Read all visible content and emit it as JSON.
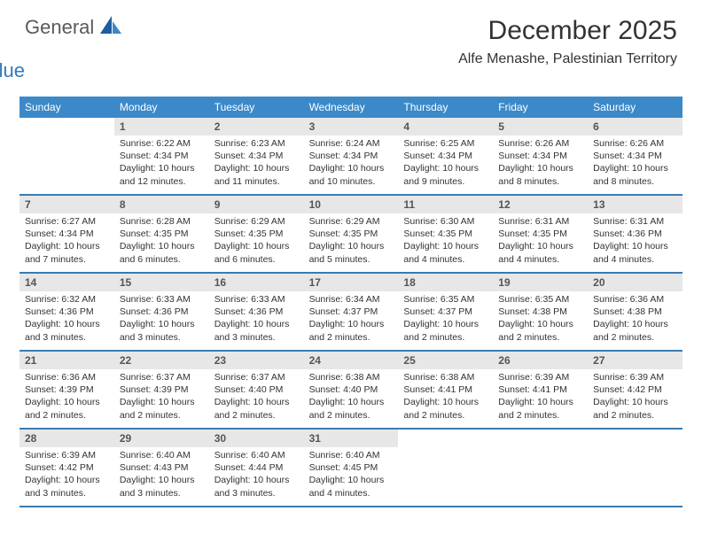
{
  "brand": {
    "general": "General",
    "blue": "Blue"
  },
  "title": "December 2025",
  "location": "Alfe Menashe, Palestinian Territory",
  "colors": {
    "header_bg": "#3b89c9",
    "header_text": "#ffffff",
    "daynum_bg": "#e7e7e7",
    "daynum_text": "#555555",
    "body_text": "#333333",
    "rule": "#3b7bb0",
    "brand_blue": "#2f7ac0",
    "brand_gray": "#5a5a5a"
  },
  "weekdays": [
    "Sunday",
    "Monday",
    "Tuesday",
    "Wednesday",
    "Thursday",
    "Friday",
    "Saturday"
  ],
  "weeks": [
    [
      null,
      {
        "n": "1",
        "sunrise": "Sunrise: 6:22 AM",
        "sunset": "Sunset: 4:34 PM",
        "day": "Daylight: 10 hours and 12 minutes."
      },
      {
        "n": "2",
        "sunrise": "Sunrise: 6:23 AM",
        "sunset": "Sunset: 4:34 PM",
        "day": "Daylight: 10 hours and 11 minutes."
      },
      {
        "n": "3",
        "sunrise": "Sunrise: 6:24 AM",
        "sunset": "Sunset: 4:34 PM",
        "day": "Daylight: 10 hours and 10 minutes."
      },
      {
        "n": "4",
        "sunrise": "Sunrise: 6:25 AM",
        "sunset": "Sunset: 4:34 PM",
        "day": "Daylight: 10 hours and 9 minutes."
      },
      {
        "n": "5",
        "sunrise": "Sunrise: 6:26 AM",
        "sunset": "Sunset: 4:34 PM",
        "day": "Daylight: 10 hours and 8 minutes."
      },
      {
        "n": "6",
        "sunrise": "Sunrise: 6:26 AM",
        "sunset": "Sunset: 4:34 PM",
        "day": "Daylight: 10 hours and 8 minutes."
      }
    ],
    [
      {
        "n": "7",
        "sunrise": "Sunrise: 6:27 AM",
        "sunset": "Sunset: 4:34 PM",
        "day": "Daylight: 10 hours and 7 minutes."
      },
      {
        "n": "8",
        "sunrise": "Sunrise: 6:28 AM",
        "sunset": "Sunset: 4:35 PM",
        "day": "Daylight: 10 hours and 6 minutes."
      },
      {
        "n": "9",
        "sunrise": "Sunrise: 6:29 AM",
        "sunset": "Sunset: 4:35 PM",
        "day": "Daylight: 10 hours and 6 minutes."
      },
      {
        "n": "10",
        "sunrise": "Sunrise: 6:29 AM",
        "sunset": "Sunset: 4:35 PM",
        "day": "Daylight: 10 hours and 5 minutes."
      },
      {
        "n": "11",
        "sunrise": "Sunrise: 6:30 AM",
        "sunset": "Sunset: 4:35 PM",
        "day": "Daylight: 10 hours and 4 minutes."
      },
      {
        "n": "12",
        "sunrise": "Sunrise: 6:31 AM",
        "sunset": "Sunset: 4:35 PM",
        "day": "Daylight: 10 hours and 4 minutes."
      },
      {
        "n": "13",
        "sunrise": "Sunrise: 6:31 AM",
        "sunset": "Sunset: 4:36 PM",
        "day": "Daylight: 10 hours and 4 minutes."
      }
    ],
    [
      {
        "n": "14",
        "sunrise": "Sunrise: 6:32 AM",
        "sunset": "Sunset: 4:36 PM",
        "day": "Daylight: 10 hours and 3 minutes."
      },
      {
        "n": "15",
        "sunrise": "Sunrise: 6:33 AM",
        "sunset": "Sunset: 4:36 PM",
        "day": "Daylight: 10 hours and 3 minutes."
      },
      {
        "n": "16",
        "sunrise": "Sunrise: 6:33 AM",
        "sunset": "Sunset: 4:36 PM",
        "day": "Daylight: 10 hours and 3 minutes."
      },
      {
        "n": "17",
        "sunrise": "Sunrise: 6:34 AM",
        "sunset": "Sunset: 4:37 PM",
        "day": "Daylight: 10 hours and 2 minutes."
      },
      {
        "n": "18",
        "sunrise": "Sunrise: 6:35 AM",
        "sunset": "Sunset: 4:37 PM",
        "day": "Daylight: 10 hours and 2 minutes."
      },
      {
        "n": "19",
        "sunrise": "Sunrise: 6:35 AM",
        "sunset": "Sunset: 4:38 PM",
        "day": "Daylight: 10 hours and 2 minutes."
      },
      {
        "n": "20",
        "sunrise": "Sunrise: 6:36 AM",
        "sunset": "Sunset: 4:38 PM",
        "day": "Daylight: 10 hours and 2 minutes."
      }
    ],
    [
      {
        "n": "21",
        "sunrise": "Sunrise: 6:36 AM",
        "sunset": "Sunset: 4:39 PM",
        "day": "Daylight: 10 hours and 2 minutes."
      },
      {
        "n": "22",
        "sunrise": "Sunrise: 6:37 AM",
        "sunset": "Sunset: 4:39 PM",
        "day": "Daylight: 10 hours and 2 minutes."
      },
      {
        "n": "23",
        "sunrise": "Sunrise: 6:37 AM",
        "sunset": "Sunset: 4:40 PM",
        "day": "Daylight: 10 hours and 2 minutes."
      },
      {
        "n": "24",
        "sunrise": "Sunrise: 6:38 AM",
        "sunset": "Sunset: 4:40 PM",
        "day": "Daylight: 10 hours and 2 minutes."
      },
      {
        "n": "25",
        "sunrise": "Sunrise: 6:38 AM",
        "sunset": "Sunset: 4:41 PM",
        "day": "Daylight: 10 hours and 2 minutes."
      },
      {
        "n": "26",
        "sunrise": "Sunrise: 6:39 AM",
        "sunset": "Sunset: 4:41 PM",
        "day": "Daylight: 10 hours and 2 minutes."
      },
      {
        "n": "27",
        "sunrise": "Sunrise: 6:39 AM",
        "sunset": "Sunset: 4:42 PM",
        "day": "Daylight: 10 hours and 2 minutes."
      }
    ],
    [
      {
        "n": "28",
        "sunrise": "Sunrise: 6:39 AM",
        "sunset": "Sunset: 4:42 PM",
        "day": "Daylight: 10 hours and 3 minutes."
      },
      {
        "n": "29",
        "sunrise": "Sunrise: 6:40 AM",
        "sunset": "Sunset: 4:43 PM",
        "day": "Daylight: 10 hours and 3 minutes."
      },
      {
        "n": "30",
        "sunrise": "Sunrise: 6:40 AM",
        "sunset": "Sunset: 4:44 PM",
        "day": "Daylight: 10 hours and 3 minutes."
      },
      {
        "n": "31",
        "sunrise": "Sunrise: 6:40 AM",
        "sunset": "Sunset: 4:45 PM",
        "day": "Daylight: 10 hours and 4 minutes."
      },
      null,
      null,
      null
    ]
  ]
}
